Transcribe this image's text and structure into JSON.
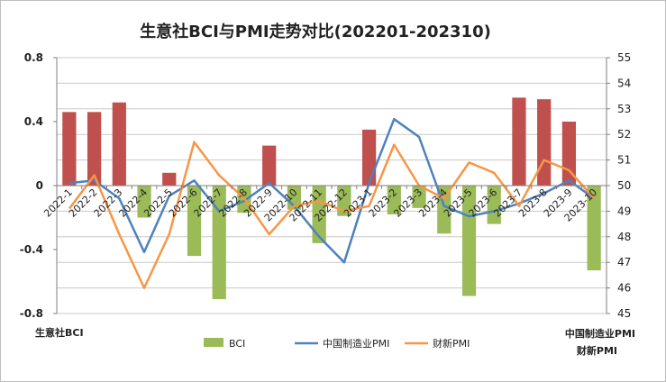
{
  "chart_data": {
    "type": "bar+line",
    "title": "生意社BCI与PMI走势对比(202201-202310)",
    "categories": [
      "2022-1",
      "2022-2",
      "2022-3",
      "2022-4",
      "2022-5",
      "2022-6",
      "2022-7",
      "2022-8",
      "2022-9",
      "2022-10",
      "2022-11",
      "2022-12",
      "2023-1",
      "2023-2",
      "2023-3",
      "2023-4",
      "2023-5",
      "2023-6",
      "2023-7",
      "2023-8",
      "2023-9",
      "2023-10"
    ],
    "left_axis": {
      "label": "生意社BCI",
      "min": -0.8,
      "max": 0.8,
      "ticks": [
        "0.8",
        "0.4",
        "0",
        "-0.4",
        "-0.8"
      ]
    },
    "right_axis": {
      "label_1": "中国制造业PMI",
      "label_2": "财新PMI",
      "min": 45,
      "max": 55,
      "ticks": [
        "55",
        "54",
        "53",
        "52",
        "51",
        "50",
        "49",
        "48",
        "47",
        "46",
        "45"
      ]
    },
    "series": [
      {
        "name": "BCI",
        "type": "bar",
        "axis": "left",
        "color_pos": "#c0504d",
        "color_neg": "#9bbb59",
        "values": [
          0.46,
          0.46,
          0.52,
          -0.2,
          0.08,
          -0.44,
          -0.71,
          -0.17,
          0.25,
          -0.15,
          -0.36,
          -0.19,
          0.35,
          -0.18,
          -0.14,
          -0.3,
          -0.69,
          -0.24,
          0.55,
          0.54,
          0.4,
          -0.53
        ]
      },
      {
        "name": "中国制造业PMI",
        "type": "line",
        "axis": "right",
        "color": "#4f81bd",
        "values": [
          50.1,
          50.2,
          49.5,
          47.4,
          49.6,
          50.2,
          49.0,
          49.4,
          50.1,
          49.2,
          48.0,
          47.0,
          50.1,
          52.6,
          51.9,
          49.2,
          48.8,
          49.0,
          49.3,
          49.7,
          50.2,
          49.5
        ]
      },
      {
        "name": "财新PMI",
        "type": "line",
        "axis": "right",
        "color": "#f79646",
        "values": [
          49.1,
          50.4,
          48.1,
          46.0,
          48.1,
          51.7,
          50.4,
          49.5,
          48.1,
          49.2,
          49.4,
          49.0,
          49.2,
          51.6,
          50.0,
          49.5,
          50.9,
          50.5,
          49.2,
          51.0,
          50.6,
          49.5
        ]
      }
    ],
    "legend": {
      "position": "bottom",
      "items": [
        "BCI",
        "中国制造业PMI",
        "财新PMI"
      ]
    }
  }
}
